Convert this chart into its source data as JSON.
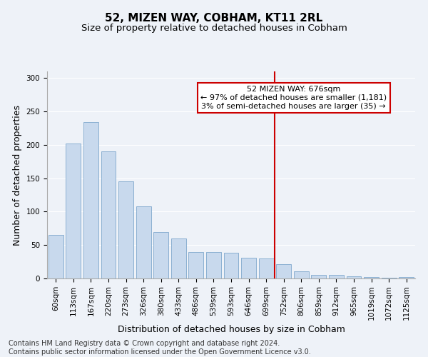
{
  "title": "52, MIZEN WAY, COBHAM, KT11 2RL",
  "subtitle": "Size of property relative to detached houses in Cobham",
  "xlabel": "Distribution of detached houses by size in Cobham",
  "ylabel": "Number of detached properties",
  "bar_color": "#c8d9ed",
  "bar_edge_color": "#7fa8cc",
  "categories": [
    "60sqm",
    "113sqm",
    "167sqm",
    "220sqm",
    "273sqm",
    "326sqm",
    "380sqm",
    "433sqm",
    "486sqm",
    "539sqm",
    "593sqm",
    "646sqm",
    "699sqm",
    "752sqm",
    "806sqm",
    "859sqm",
    "912sqm",
    "965sqm",
    "1019sqm",
    "1072sqm",
    "1125sqm"
  ],
  "values": [
    65,
    202,
    234,
    190,
    145,
    108,
    69,
    60,
    40,
    40,
    38,
    31,
    30,
    21,
    11,
    5,
    5,
    3,
    2,
    1,
    2
  ],
  "ylim": [
    0,
    310
  ],
  "yticks": [
    0,
    50,
    100,
    150,
    200,
    250,
    300
  ],
  "vline_x": 12.5,
  "vline_color": "#cc0000",
  "annotation_text": "52 MIZEN WAY: 676sqm\n← 97% of detached houses are smaller (1,181)\n3% of semi-detached houses are larger (35) →",
  "annotation_box_color": "#cc0000",
  "footer_text": "Contains HM Land Registry data © Crown copyright and database right 2024.\nContains public sector information licensed under the Open Government Licence v3.0.",
  "background_color": "#eef2f8",
  "grid_color": "#ffffff",
  "title_fontsize": 11,
  "subtitle_fontsize": 9.5,
  "axis_label_fontsize": 9,
  "tick_fontsize": 7.5,
  "footer_fontsize": 7
}
